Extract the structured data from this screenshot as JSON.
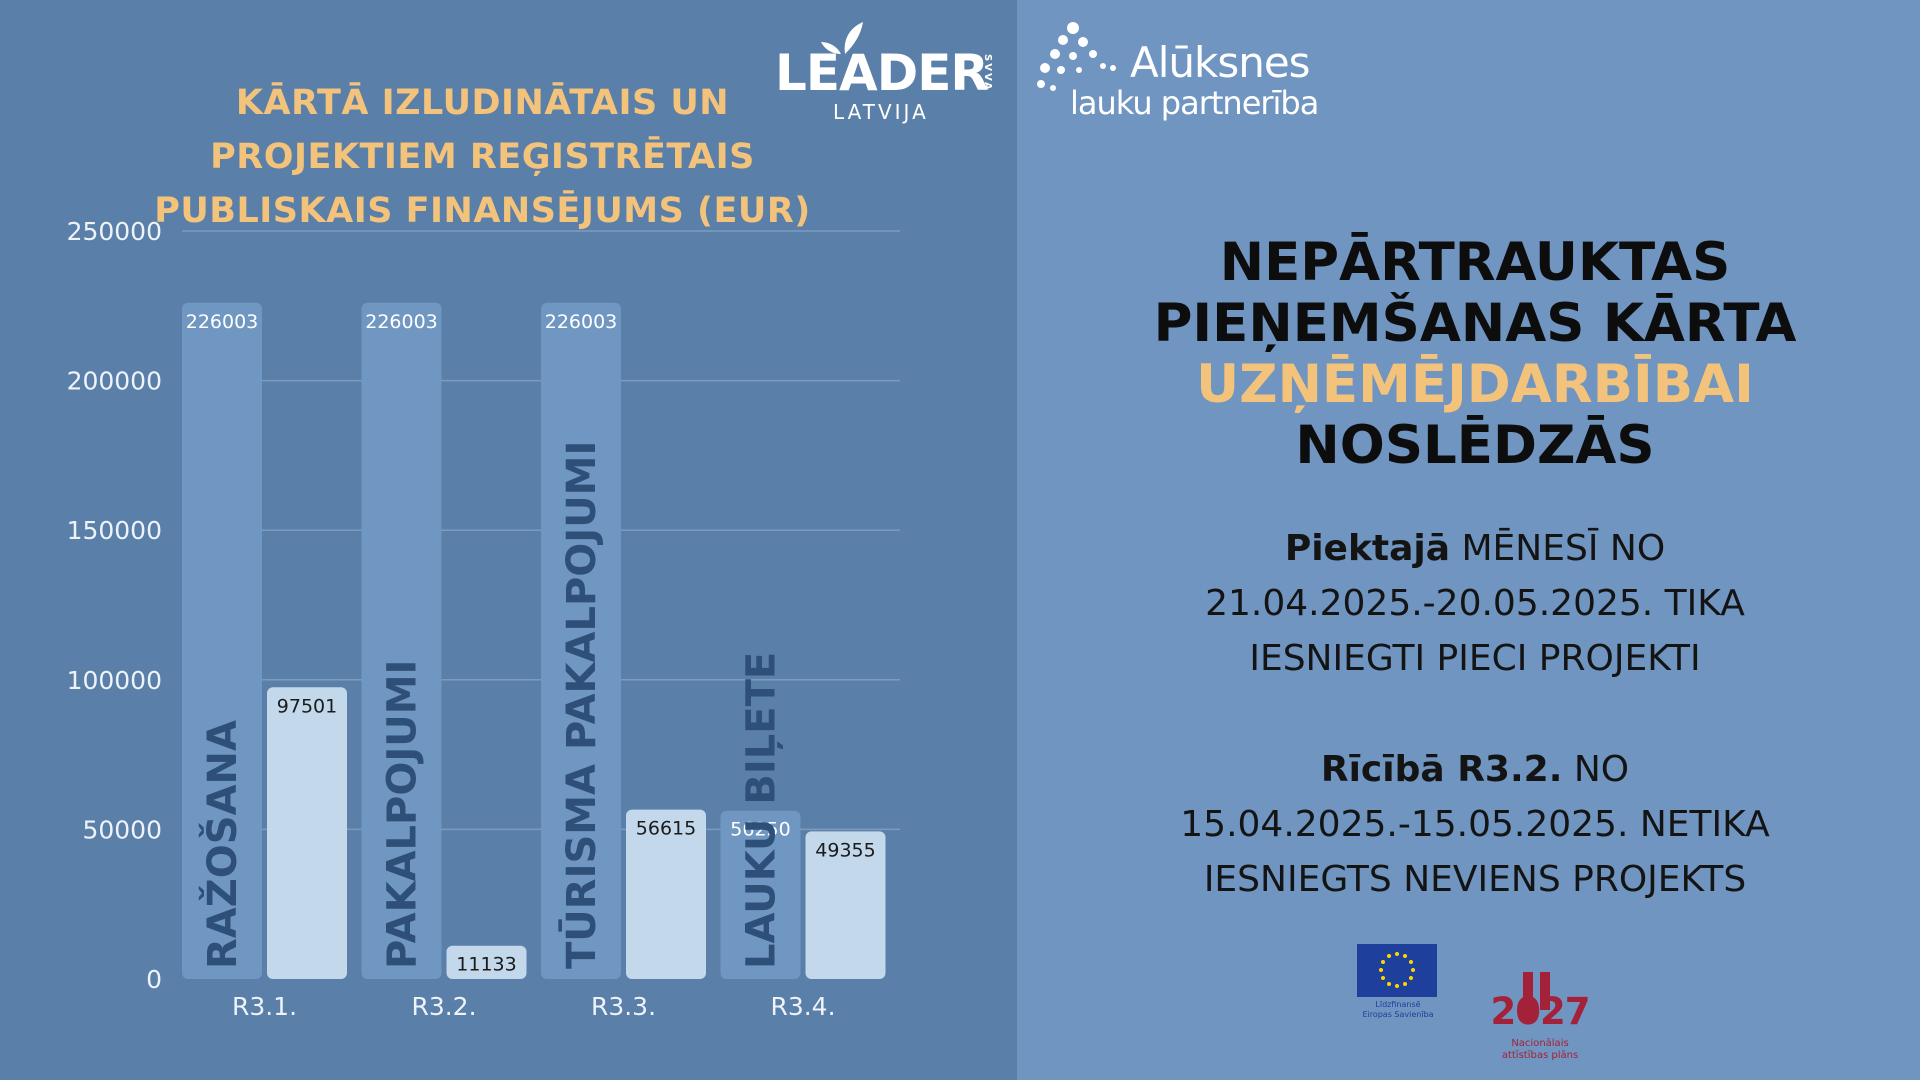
{
  "chart_data": {
    "type": "bar",
    "title_lines": [
      "KĀRTĀ IZLUDINĀTAIS UN",
      "PROJEKTIEM REĢISTRĒTAIS",
      "PUBLISKAIS FINANSĒJUMS (EUR)"
    ],
    "categories": [
      "R3.1.",
      "R3.2.",
      "R3.3.",
      "R3.4."
    ],
    "category_names": [
      "RAŽOŠANA",
      "PAKALPOJUMI",
      "TŪRISMA PAKALPOJUMI",
      "LAUKU BIĻETE"
    ],
    "series": [
      {
        "values": [
          226003,
          226003,
          226003,
          56250
        ],
        "color": "#7097c2"
      },
      {
        "values": [
          97501,
          11133,
          56615,
          49355
        ],
        "color": "#c4d8ec"
      }
    ],
    "yticks": [
      0,
      50000,
      100000,
      150000,
      200000,
      250000
    ],
    "ylim": [
      0,
      250000
    ],
    "grid": true,
    "legend": "none",
    "xlabel": "",
    "ylabel": ""
  },
  "logos": {
    "leader_word": "LEADER",
    "leader_svva": "SVVA",
    "leader_sub": "LATVIJA",
    "aluksnes_word": "Alūksnes",
    "aluksnes_sub": "lauku partnerība",
    "eu_caption_1": "Līdzfinansē",
    "eu_caption_2": "Eiropas Savienība",
    "nap_year": "2027",
    "nap_caption_1": "Nacionālais",
    "nap_caption_2": "attīstības plāns"
  },
  "headline": {
    "line1": "NEPĀRTRAUKTAS",
    "line2": "PIEŅEMŠANAS KĀRTA",
    "line3": "UZŅĒMĒJDARBĪBAI",
    "line4": "NOSLĒDZĀS"
  },
  "info1": {
    "bold": "Piektajā",
    "rest": " MĒNESĪ NO",
    "line2": "21.04.2025.-20.05.2025. TIKA",
    "line3": "IESNIEGTI PIECI PROJEKTI"
  },
  "info2": {
    "bold": "Rīcībā R3.2.",
    "rest": " NO",
    "line2": "15.04.2025.-15.05.2025. NETIKA",
    "line3": "IESNIEGTS NEVIENS PROJEKTS"
  },
  "colors": {
    "left_bg": "#5a7fa8",
    "right_bg": "#6f95c0",
    "accent": "#f3c37b",
    "category_label": "#2e4f78"
  }
}
